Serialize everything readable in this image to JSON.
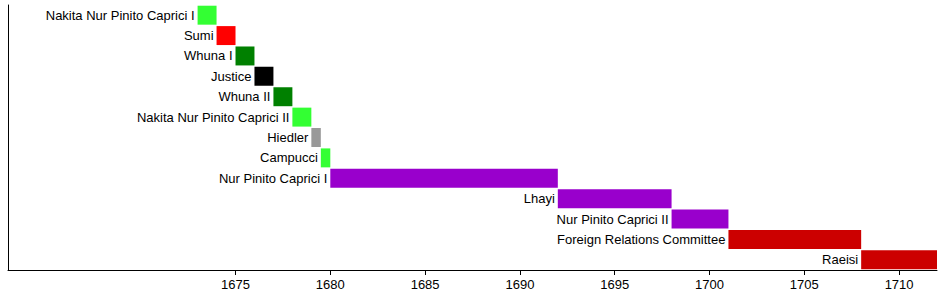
{
  "chart_data": {
    "type": "bar",
    "orientation": "horizontal",
    "categories": [
      "Nakita Nur Pinito Caprici I",
      "Sumi",
      "Whuna I",
      "Justice",
      "Whuna II",
      "Nakita Nur Pinito Caprici II",
      "Hiedler",
      "Campucci",
      "Nur Pinito Caprici I",
      "Lhayi",
      "Nur Pinito Caprici II",
      "Foreign Relations Committee",
      "Raeisi"
    ],
    "start": [
      1673,
      1674,
      1675,
      1676,
      1677,
      1678,
      1679,
      1679.5,
      1680,
      1692,
      1698,
      1701,
      1708
    ],
    "end": [
      1674,
      1675,
      1676,
      1677,
      1678,
      1679,
      1679.5,
      1680,
      1692,
      1698,
      1701,
      1708,
      1712
    ],
    "colors": [
      "#33ff33",
      "#ff0000",
      "#008000",
      "#000000",
      "#008000",
      "#33ff33",
      "#999999",
      "#33ff33",
      "#9900cc",
      "#9900cc",
      "#9900cc",
      "#cc0000",
      "#cc0000"
    ],
    "xlim": [
      1663,
      1712
    ],
    "xticks": [
      1675,
      1680,
      1685,
      1690,
      1695,
      1700,
      1705,
      1710
    ],
    "grid": false
  }
}
